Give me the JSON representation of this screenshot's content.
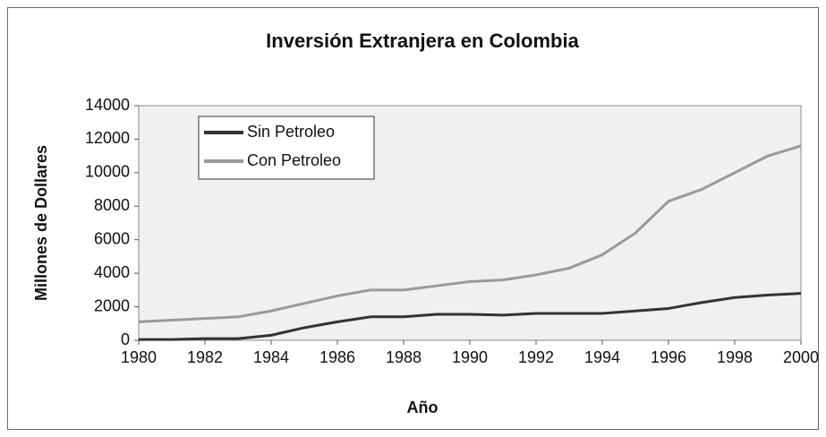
{
  "chart_data": {
    "type": "line",
    "title": "Inversión Extranjera en Colombia",
    "xlabel": "Año",
    "ylabel": "Millones de Dollares",
    "x": [
      1980,
      1981,
      1982,
      1983,
      1984,
      1985,
      1986,
      1987,
      1988,
      1989,
      1990,
      1991,
      1992,
      1993,
      1994,
      1995,
      1996,
      1997,
      1998,
      1999,
      2000
    ],
    "series": [
      {
        "name": "Sin Petroleo",
        "color": "#333333",
        "values": [
          50,
          50,
          100,
          100,
          300,
          750,
          1100,
          1400,
          1400,
          1550,
          1550,
          1500,
          1600,
          1600,
          1600,
          1750,
          1900,
          2250,
          2550,
          2700,
          2800
        ]
      },
      {
        "name": "Con Petroleo",
        "color": "#999999",
        "values": [
          1100,
          1200,
          1300,
          1400,
          1750,
          2200,
          2650,
          3000,
          3000,
          3250,
          3500,
          3600,
          3900,
          4300,
          5100,
          6400,
          8300,
          9000,
          10000,
          11000,
          11600
        ]
      }
    ],
    "xlim": [
      1980,
      2000
    ],
    "xticks": [
      1980,
      1982,
      1984,
      1986,
      1988,
      1990,
      1992,
      1994,
      1996,
      1998,
      2000
    ],
    "ylim": [
      0,
      14000
    ],
    "yticks": [
      0,
      2000,
      4000,
      6000,
      8000,
      10000,
      12000,
      14000
    ],
    "grid": false,
    "legend": "upper left"
  }
}
